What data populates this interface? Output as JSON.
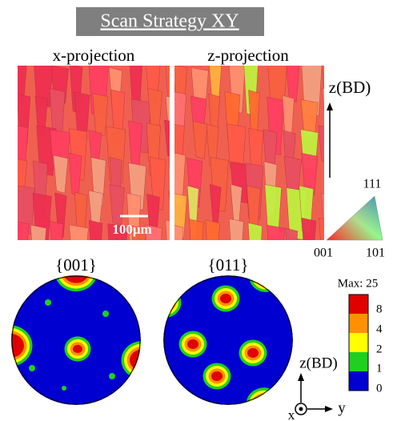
{
  "title": "Scan Strategy XY",
  "maps": [
    {
      "label": "x-projection"
    },
    {
      "label": "z-projection"
    }
  ],
  "scale_bar": "100μm",
  "build_direction": "z(BD)",
  "ipf_key": {
    "top": "111",
    "left": "001",
    "right": "101"
  },
  "pole_figures": [
    {
      "label": "{001}"
    },
    {
      "label": "{011}"
    }
  ],
  "legend": {
    "title": "Max: 25",
    "levels": [
      8,
      4,
      2,
      1,
      0
    ]
  },
  "axes": {
    "up": "z(BD)",
    "out": "x",
    "right": "y"
  }
}
